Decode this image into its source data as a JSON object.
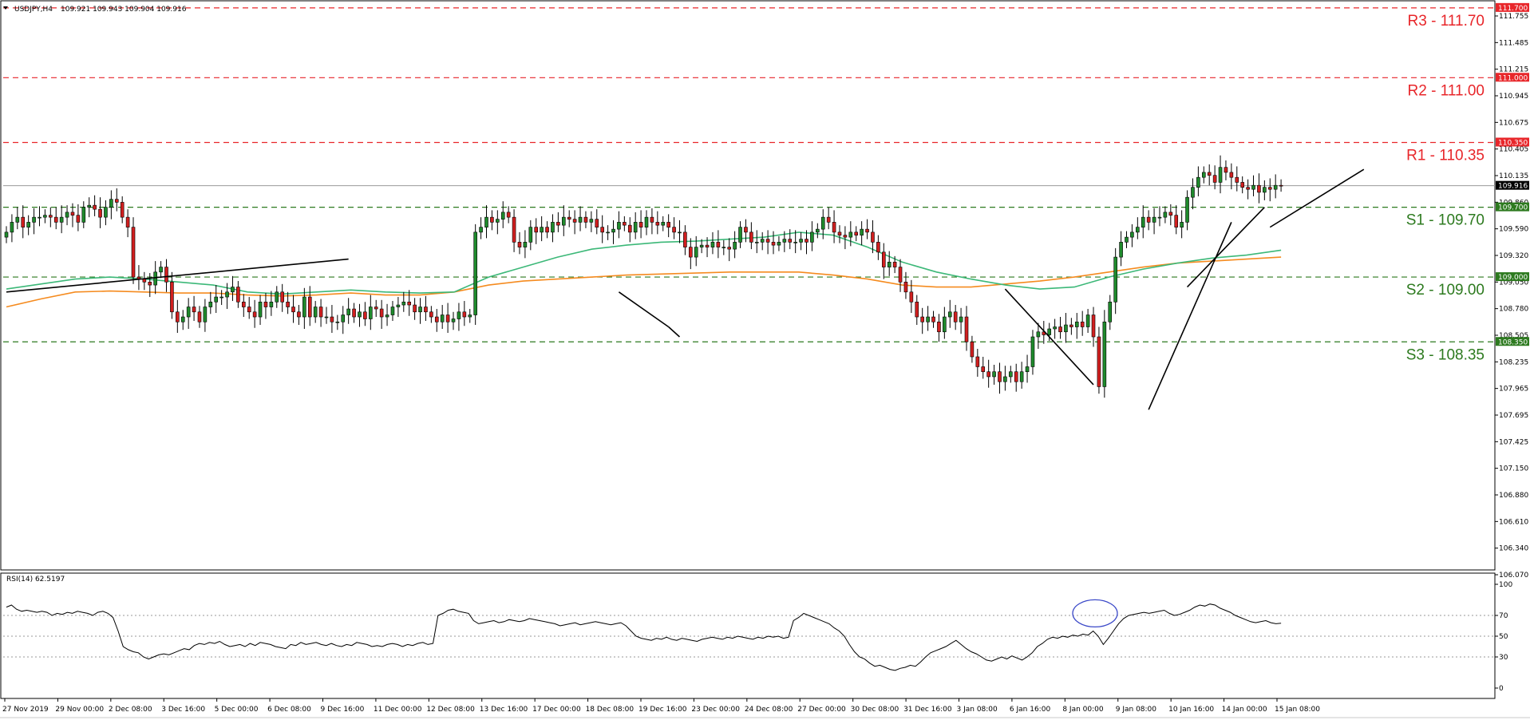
{
  "header": {
    "symbol": "USDJPY,H4",
    "ohlc": "109.921 109.943 109.904 109.916",
    "rsi_label": "RSI(14) 62.5197"
  },
  "colors": {
    "resistance": "#e8262a",
    "support": "#2d7a1f",
    "bull": "#1f8a2c",
    "bear": "#d11f1f",
    "ma_fast": "#3cb878",
    "ma_slow": "#f58b1f",
    "trendline": "#000000",
    "rsi_line": "#000000",
    "rsi_circle": "#3a48c8"
  },
  "chart_data": [
    {
      "type": "candlestick",
      "title": "",
      "price_axis": {
        "ylim": [
          106.07,
          111.755
        ],
        "ticks": [
          "111.755",
          "111.485",
          "111.215",
          "110.945",
          "110.675",
          "110.405",
          "110.135",
          "109.860",
          "109.590",
          "109.320",
          "109.050",
          "108.780",
          "108.505",
          "108.235",
          "107.965",
          "107.695",
          "107.425",
          "107.150",
          "106.880",
          "106.610",
          "106.340",
          "106.070"
        ]
      },
      "time_axis": {
        "labels": [
          "27 Nov 2019",
          "29 Nov 00:00",
          "2 Dec 08:00",
          "3 Dec 16:00",
          "5 Dec 00:00",
          "6 Dec 08:00",
          "9 Dec 16:00",
          "11 Dec 00:00",
          "12 Dec 08:00",
          "13 Dec 16:00",
          "17 Dec 00:00",
          "18 Dec 08:00",
          "19 Dec 16:00",
          "23 Dec 00:00",
          "24 Dec 08:00",
          "27 Dec 00:00",
          "30 Dec 08:00",
          "31 Dec 16:00",
          "3 Jan 08:00",
          "6 Jan 16:00",
          "8 Jan 00:00",
          "9 Jan 08:00",
          "10 Jan 16:00",
          "14 Jan 00:00",
          "15 Jan 08:00"
        ]
      },
      "levels": [
        {
          "name": "R3",
          "value": 111.7,
          "label": "R3 - 111.70",
          "tag": "111.700",
          "kind": "resistance"
        },
        {
          "name": "R2",
          "value": 111.0,
          "label": "R2 - 111.00",
          "tag": "111.000",
          "kind": "resistance"
        },
        {
          "name": "R1",
          "value": 110.35,
          "label": "R1 - 110.35",
          "tag": "110.350",
          "kind": "resistance"
        },
        {
          "name": "S1",
          "value": 109.7,
          "label": "S1 - 109.70",
          "tag": "109.700",
          "kind": "support"
        },
        {
          "name": "S2",
          "value": 109.0,
          "label": "S2 - 109.00",
          "tag": "109.000",
          "kind": "support"
        },
        {
          "name": "S3",
          "value": 108.35,
          "label": "S3 - 108.35",
          "tag": "108.350",
          "kind": "support"
        }
      ],
      "current_price": {
        "value": 109.916,
        "tag": "109.916"
      },
      "close_series": [
        109.45,
        109.55,
        109.6,
        109.5,
        109.55,
        109.6,
        109.6,
        109.62,
        109.6,
        109.55,
        109.6,
        109.65,
        109.62,
        109.55,
        109.7,
        109.72,
        109.68,
        109.6,
        109.7,
        109.78,
        109.75,
        109.6,
        109.5,
        109.0,
        108.98,
        108.95,
        108.92,
        109.05,
        109.1,
        108.95,
        108.65,
        108.55,
        108.6,
        108.7,
        108.65,
        108.55,
        108.7,
        108.75,
        108.8,
        108.8,
        108.85,
        108.9,
        108.75,
        108.7,
        108.65,
        108.6,
        108.75,
        108.7,
        108.75,
        108.85,
        108.75,
        108.7,
        108.65,
        108.6,
        108.8,
        108.6,
        108.7,
        108.6,
        108.6,
        108.55,
        108.55,
        108.62,
        108.68,
        108.6,
        108.65,
        108.58,
        108.7,
        108.68,
        108.6,
        108.62,
        108.7,
        108.72,
        108.75,
        108.72,
        108.65,
        108.7,
        108.65,
        108.6,
        108.55,
        108.62,
        108.55,
        108.58,
        108.65,
        108.6,
        108.62,
        109.45,
        109.5,
        109.6,
        109.55,
        109.58,
        109.65,
        109.6,
        109.35,
        109.3,
        109.35,
        109.5,
        109.45,
        109.5,
        109.45,
        109.55,
        109.52,
        109.6,
        109.58,
        109.55,
        109.6,
        109.55,
        109.58,
        109.5,
        109.45,
        109.45,
        109.48,
        109.55,
        109.52,
        109.45,
        109.55,
        109.5,
        109.6,
        109.55,
        109.52,
        109.55,
        109.5,
        109.45,
        109.45,
        109.3,
        109.2,
        109.3,
        109.32,
        109.3,
        109.35,
        109.3,
        109.3,
        109.28,
        109.35,
        109.5,
        109.45,
        109.35,
        109.35,
        109.38,
        109.35,
        109.32,
        109.35,
        109.38,
        109.35,
        109.35,
        109.38,
        109.35,
        109.45,
        109.48,
        109.6,
        109.55,
        109.45,
        109.42,
        109.4,
        109.45,
        109.42,
        109.48,
        109.45,
        109.35,
        109.25,
        109.1,
        109.15,
        109.1,
        108.95,
        108.85,
        108.75,
        108.6,
        108.55,
        108.6,
        108.55,
        108.45,
        108.6,
        108.65,
        108.55,
        108.6,
        108.35,
        108.2,
        108.1,
        108.05,
        108.0,
        108.05,
        107.95,
        108.0,
        108.05,
        107.95,
        108.05,
        108.1,
        108.4,
        108.45,
        108.42,
        108.48,
        108.5,
        108.45,
        108.52,
        108.5,
        108.55,
        108.5,
        108.62,
        108.4,
        107.9,
        108.55,
        108.75,
        109.2,
        109.35,
        109.4,
        109.45,
        109.5,
        109.6,
        109.55,
        109.6,
        109.6,
        109.65,
        109.62,
        109.5,
        109.55,
        109.8,
        109.9,
        110.0,
        110.05,
        110.02,
        109.95,
        110.1,
        110.05,
        110.0,
        109.95,
        109.9,
        109.88,
        109.92,
        109.85,
        109.9,
        109.88,
        109.92,
        109.916
      ],
      "ma_fast_series": [
        108.88,
        108.93,
        108.98,
        109.0,
        108.98,
        108.95,
        108.92,
        108.85,
        108.83,
        108.85,
        108.87,
        108.85,
        108.84,
        108.85,
        109.0,
        109.1,
        109.2,
        109.28,
        109.32,
        109.35,
        109.36,
        109.38,
        109.4,
        109.45,
        109.42,
        109.3,
        109.15,
        109.05,
        108.98,
        108.92,
        108.88,
        108.9,
        109.0,
        109.08,
        109.14,
        109.19,
        109.22,
        109.27
      ],
      "ma_slow_series": [
        108.7,
        108.78,
        108.85,
        108.86,
        108.85,
        108.84,
        108.84,
        108.82,
        108.81,
        108.82,
        108.84,
        108.82,
        108.82,
        108.85,
        108.92,
        108.96,
        108.98,
        109.0,
        109.02,
        109.03,
        109.04,
        109.05,
        109.05,
        109.05,
        109.02,
        108.98,
        108.92,
        108.9,
        108.9,
        108.93,
        108.96,
        109.0,
        109.05,
        109.1,
        109.14,
        109.16,
        109.18,
        109.2
      ],
      "trendlines": [
        {
          "from": [
            0,
            108.85
          ],
          "to": [
            62,
            109.18
          ]
        },
        {
          "from": [
            111,
            108.85
          ],
          "to": [
            120,
            108.5
          ]
        },
        {
          "from": [
            120,
            108.5
          ],
          "to": [
            122,
            108.4
          ]
        },
        {
          "from": [
            181,
            108.88
          ],
          "to": [
            197,
            107.92
          ]
        },
        {
          "from": [
            207,
            107.67
          ],
          "to": [
            222,
            109.55
          ]
        },
        {
          "from": [
            214,
            108.9
          ],
          "to": [
            228,
            109.7
          ]
        },
        {
          "from": [
            229,
            109.5
          ],
          "to": [
            246,
            110.08
          ]
        }
      ]
    },
    {
      "type": "line",
      "title": "",
      "name": "RSI(14)",
      "ylim": [
        0,
        100
      ],
      "ticks": [
        "100",
        "70",
        "50",
        "30",
        "0"
      ],
      "levels": [
        70,
        50,
        30
      ],
      "values": [
        78,
        80,
        76,
        74,
        75,
        74,
        73,
        74,
        73,
        70,
        72,
        71,
        73,
        72,
        74,
        73,
        72,
        70,
        73,
        74,
        72,
        68,
        55,
        40,
        37,
        35,
        34,
        30,
        28,
        30,
        32,
        33,
        32,
        34,
        36,
        38,
        37,
        41,
        43,
        42,
        44,
        43,
        45,
        42,
        40,
        41,
        42,
        40,
        43,
        41,
        44,
        43,
        42,
        40,
        39,
        38,
        42,
        41,
        44,
        42,
        43,
        44,
        42,
        41,
        43,
        41,
        40,
        42,
        41,
        44,
        43,
        42,
        40,
        41,
        40,
        42,
        43,
        42,
        40,
        42,
        41,
        43,
        44,
        42,
        43,
        70,
        72,
        75,
        76,
        74,
        73,
        72,
        65,
        62,
        63,
        64,
        65,
        63,
        64,
        66,
        65,
        64,
        65,
        67,
        66,
        65,
        64,
        63,
        62,
        60,
        61,
        62,
        63,
        61,
        62,
        63,
        64,
        63,
        62,
        61,
        62,
        63,
        60,
        55,
        50,
        48,
        47,
        46,
        48,
        47,
        49,
        47,
        46,
        48,
        47,
        46,
        45,
        47,
        48,
        49,
        48,
        47,
        49,
        48,
        50,
        49,
        48,
        47,
        49,
        48,
        50,
        49,
        50,
        48,
        49,
        65,
        68,
        72,
        70,
        68,
        66,
        64,
        62,
        58,
        55,
        50,
        42,
        35,
        30,
        28,
        24,
        21,
        22,
        20,
        18,
        17,
        19,
        20,
        22,
        21,
        25,
        30,
        34,
        36,
        38,
        40,
        43,
        46,
        42,
        38,
        35,
        33,
        30,
        27,
        26,
        28,
        30,
        28,
        31,
        29,
        27,
        30,
        34,
        40,
        43,
        47,
        49,
        48,
        50,
        49,
        51,
        50,
        52,
        51,
        55,
        50,
        42,
        48,
        55,
        62,
        67,
        70,
        71,
        72,
        73,
        72,
        73,
        74,
        75,
        72,
        70,
        71,
        73,
        75,
        78,
        80,
        79,
        81,
        80,
        77,
        75,
        73,
        70,
        68,
        66,
        64,
        63,
        64,
        65,
        63,
        62,
        62.5
      ]
    }
  ]
}
